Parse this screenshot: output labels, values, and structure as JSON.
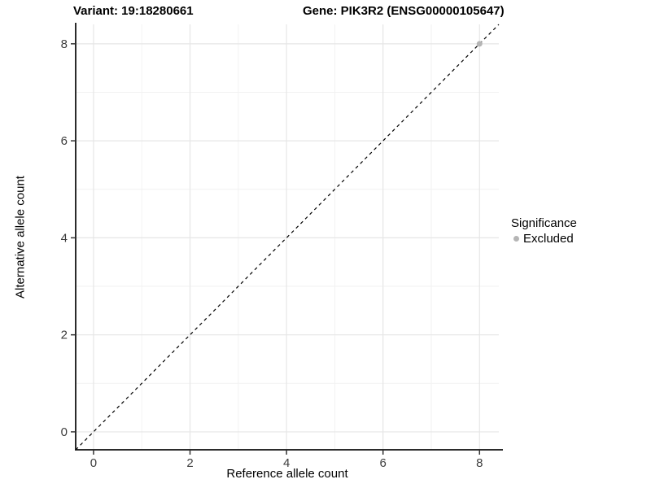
{
  "header": {
    "variant_title": "Variant: 19:18280661",
    "gene_title": "Gene: PIK3R2 (ENSG00000105647)"
  },
  "chart_data": {
    "type": "scatter",
    "title": "Variant: 19:18280661 | Gene: PIK3R2 (ENSG00000105647)",
    "xlabel": "Reference allele count",
    "ylabel": "Alternative allele count",
    "xlim": [
      -0.37,
      8.4
    ],
    "ylim": [
      -0.37,
      8.4
    ],
    "x_ticks": [
      0,
      2,
      4,
      6,
      8
    ],
    "y_ticks": [
      0,
      2,
      4,
      6,
      8
    ],
    "grid": {
      "major": true,
      "minor": true
    },
    "series": [
      {
        "name": "Excluded",
        "color": "#b5b5b5",
        "points": [
          {
            "x": 8,
            "y": 8
          }
        ]
      }
    ],
    "reference_line": {
      "type": "identity",
      "slope": 1,
      "intercept": 0,
      "style": "dashed",
      "color": "#000000"
    },
    "legend": {
      "title": "Significance",
      "position": "right",
      "entries": [
        "Excluded"
      ]
    }
  },
  "style": {
    "axis_line_color": "#2b2b2b",
    "tick_mark_color": "#333333",
    "tick_label_color": "#3d3d3d",
    "grid_major_color": "#e6e6e6",
    "grid_minor_color": "#f2f2f2",
    "point_color": "#b5b5b5",
    "background": "#ffffff"
  }
}
